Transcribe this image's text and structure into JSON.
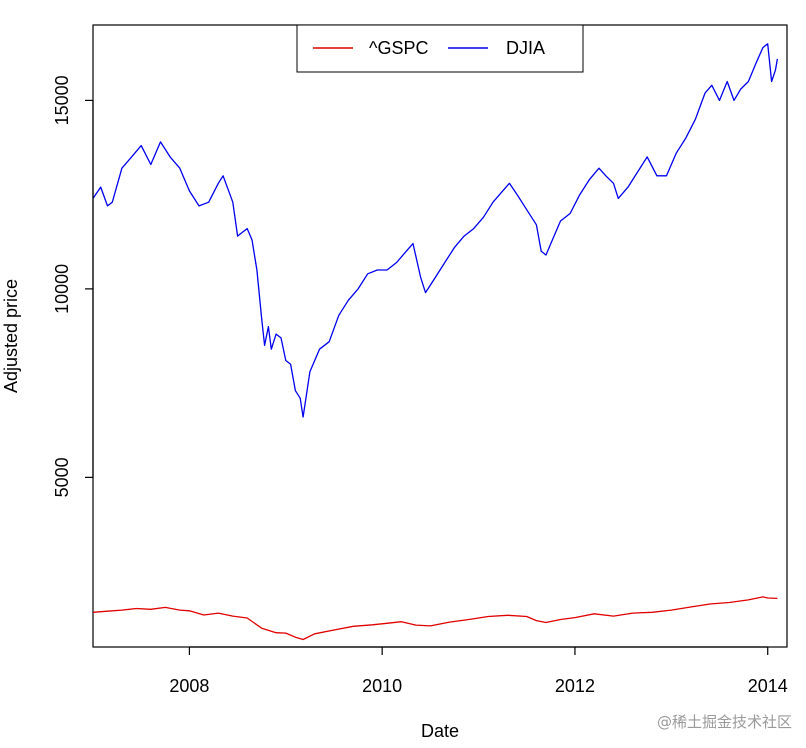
{
  "chart_data": {
    "type": "line",
    "xlabel": "Date",
    "ylabel": "Adjusted price",
    "xlim": [
      2007.0,
      2014.2
    ],
    "ylim": [
      500,
      17000
    ],
    "x_ticks": [
      2008,
      2010,
      2012,
      2014
    ],
    "x_tick_labels": [
      "2008",
      "2010",
      "2012",
      "2014"
    ],
    "y_ticks": [
      5000,
      10000,
      15000
    ],
    "y_tick_labels": [
      "5000",
      "10000",
      "15000"
    ],
    "legend": {
      "position": "top-center",
      "entries": [
        "^GSPC",
        "DJIA"
      ]
    },
    "series": [
      {
        "name": "^GSPC",
        "color": "#e00000",
        "x": [
          2007.0,
          2007.15,
          2007.3,
          2007.45,
          2007.6,
          2007.75,
          2007.9,
          2008.0,
          2008.15,
          2008.3,
          2008.45,
          2008.6,
          2008.75,
          2008.9,
          2009.0,
          2009.1,
          2009.18,
          2009.3,
          2009.5,
          2009.7,
          2009.9,
          2010.0,
          2010.2,
          2010.35,
          2010.5,
          2010.7,
          2010.9,
          2011.1,
          2011.3,
          2011.5,
          2011.6,
          2011.7,
          2011.85,
          2012.0,
          2012.2,
          2012.4,
          2012.6,
          2012.8,
          2013.0,
          2013.2,
          2013.4,
          2013.6,
          2013.8,
          2013.95,
          2014.0,
          2014.1
        ],
        "y": [
          1420,
          1450,
          1480,
          1520,
          1500,
          1550,
          1480,
          1460,
          1350,
          1400,
          1320,
          1270,
          1000,
          880,
          870,
          760,
          700,
          850,
          950,
          1050,
          1090,
          1115,
          1170,
          1080,
          1060,
          1160,
          1230,
          1310,
          1340,
          1310,
          1200,
          1150,
          1230,
          1280,
          1380,
          1320,
          1400,
          1420,
          1480,
          1560,
          1640,
          1680,
          1750,
          1830,
          1800,
          1790
        ]
      },
      {
        "name": "DJIA",
        "color": "#0000ee",
        "x": [
          2007.0,
          2007.08,
          2007.15,
          2007.2,
          2007.3,
          2007.4,
          2007.5,
          2007.6,
          2007.7,
          2007.8,
          2007.9,
          2008.0,
          2008.05,
          2008.1,
          2008.2,
          2008.3,
          2008.35,
          2008.45,
          2008.5,
          2008.55,
          2008.6,
          2008.65,
          2008.7,
          2008.75,
          2008.78,
          2008.82,
          2008.85,
          2008.9,
          2008.95,
          2009.0,
          2009.05,
          2009.1,
          2009.15,
          2009.18,
          2009.25,
          2009.35,
          2009.45,
          2009.55,
          2009.65,
          2009.75,
          2009.85,
          2009.95,
          2010.05,
          2010.15,
          2010.25,
          2010.32,
          2010.4,
          2010.45,
          2010.55,
          2010.65,
          2010.75,
          2010.85,
          2010.95,
          2011.05,
          2011.15,
          2011.25,
          2011.32,
          2011.4,
          2011.5,
          2011.55,
          2011.6,
          2011.65,
          2011.7,
          2011.75,
          2011.85,
          2011.95,
          2012.05,
          2012.15,
          2012.25,
          2012.32,
          2012.4,
          2012.45,
          2012.55,
          2012.65,
          2012.75,
          2012.85,
          2012.95,
          2013.05,
          2013.15,
          2013.25,
          2013.35,
          2013.42,
          2013.5,
          2013.58,
          2013.65,
          2013.72,
          2013.8,
          2013.88,
          2013.95,
          2014.0,
          2014.04,
          2014.08,
          2014.1
        ],
        "y": [
          12400,
          12700,
          12200,
          12300,
          13200,
          13500,
          13800,
          13300,
          13900,
          13500,
          13200,
          12600,
          12400,
          12200,
          12300,
          12800,
          13000,
          12300,
          11400,
          11500,
          11600,
          11300,
          10500,
          9200,
          8500,
          9000,
          8400,
          8800,
          8700,
          8100,
          8000,
          7300,
          7100,
          6600,
          7800,
          8400,
          8600,
          9300,
          9700,
          10000,
          10400,
          10500,
          10500,
          10700,
          11000,
          11200,
          10300,
          9900,
          10300,
          10700,
          11100,
          11400,
          11600,
          11900,
          12300,
          12600,
          12800,
          12500,
          12100,
          11900,
          11700,
          11000,
          10900,
          11200,
          11800,
          12000,
          12500,
          12900,
          13200,
          13000,
          12800,
          12400,
          12700,
          13100,
          13500,
          13000,
          13000,
          13600,
          14000,
          14500,
          15200,
          15400,
          15000,
          15500,
          15000,
          15300,
          15500,
          16000,
          16400,
          16500,
          15500,
          15800,
          16100
        ]
      }
    ]
  },
  "watermark": "@稀土掘金技术社区"
}
